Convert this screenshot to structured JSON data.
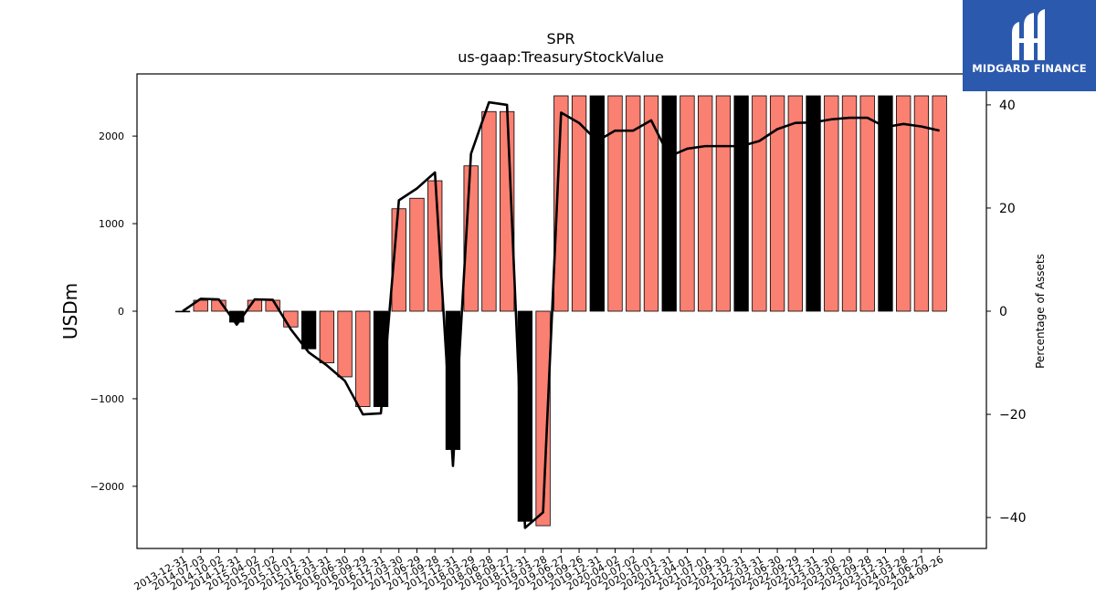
{
  "logo": {
    "name": "MIDGARD FINANCE",
    "icon": "midgard-logo-icon",
    "bg_color": "#2b59ad"
  },
  "chart_data": {
    "type": "bar",
    "title": "SPR",
    "subtitle": "us-gaap:TreasuryStockValue",
    "ylabel": "USDm",
    "y2label": "Percentage of Assets",
    "ylim": [
      -2710,
      2710
    ],
    "y2lim": [
      -46,
      46
    ],
    "yticks": [
      -2000,
      -1000,
      0,
      1000,
      2000
    ],
    "y2ticks": [
      -40,
      -20,
      0,
      20,
      40
    ],
    "bar_color": "#fa8072",
    "highlight_color": "#000000",
    "line_color": "#000000",
    "categories": [
      "2013-12-31",
      "2014-07-03",
      "2014-10-02",
      "2014-12-31",
      "2015-04-02",
      "2015-07-02",
      "2015-10-01",
      "2015-12-31",
      "2016-03-31",
      "2016-06-30",
      "2016-09-29",
      "2016-12-31",
      "2017-03-30",
      "2017-06-29",
      "2017-09-28",
      "2017-12-31",
      "2018-03-29",
      "2018-06-28",
      "2018-09-27",
      "2018-12-31",
      "2019-03-28",
      "2019-06-27",
      "2019-09-26",
      "2019-12-31",
      "2020-04-02",
      "2020-07-02",
      "2020-10-01",
      "2020-12-31",
      "2021-04-01",
      "2021-07-01",
      "2021-09-30",
      "2021-12-31",
      "2022-03-31",
      "2022-06-30",
      "2022-09-29",
      "2022-12-31",
      "2023-03-30",
      "2023-06-29",
      "2023-09-28",
      "2023-12-31",
      "2024-03-28",
      "2024-06-27",
      "2024-09-26"
    ],
    "values": [
      0,
      125,
      125,
      -125,
      125,
      125,
      -180,
      -430,
      -590,
      -750,
      -1090,
      -1090,
      1170,
      1290,
      1490,
      -1580,
      1660,
      2280,
      2280,
      -2400,
      -2450,
      2460,
      2460,
      2460,
      2460,
      2460,
      2460,
      2460,
      2460,
      2460,
      2460,
      2460,
      2460,
      2460,
      2460,
      2460,
      2460,
      2460,
      2460,
      2460,
      2460,
      2460,
      2460
    ],
    "highlight": [
      false,
      false,
      false,
      true,
      false,
      false,
      false,
      true,
      false,
      false,
      false,
      true,
      false,
      false,
      false,
      true,
      false,
      false,
      false,
      true,
      false,
      false,
      false,
      true,
      false,
      false,
      false,
      true,
      false,
      false,
      false,
      true,
      false,
      false,
      false,
      true,
      false,
      false,
      false,
      true,
      false,
      false,
      false
    ],
    "pct_assets": [
      0,
      2.4,
      2.3,
      -2.6,
      2.3,
      2.2,
      -3.5,
      -8,
      -10.5,
      -13.5,
      -20,
      -19.8,
      21.5,
      23.8,
      26.9,
      -30,
      30.5,
      40.5,
      40,
      -42,
      -39,
      38.5,
      36.5,
      33,
      35,
      35,
      37,
      30,
      31.5,
      32,
      32,
      32,
      33,
      35.3,
      36.5,
      36.6,
      37.2,
      37.5,
      37.5,
      35.7,
      36.3,
      35.8,
      35
    ]
  }
}
